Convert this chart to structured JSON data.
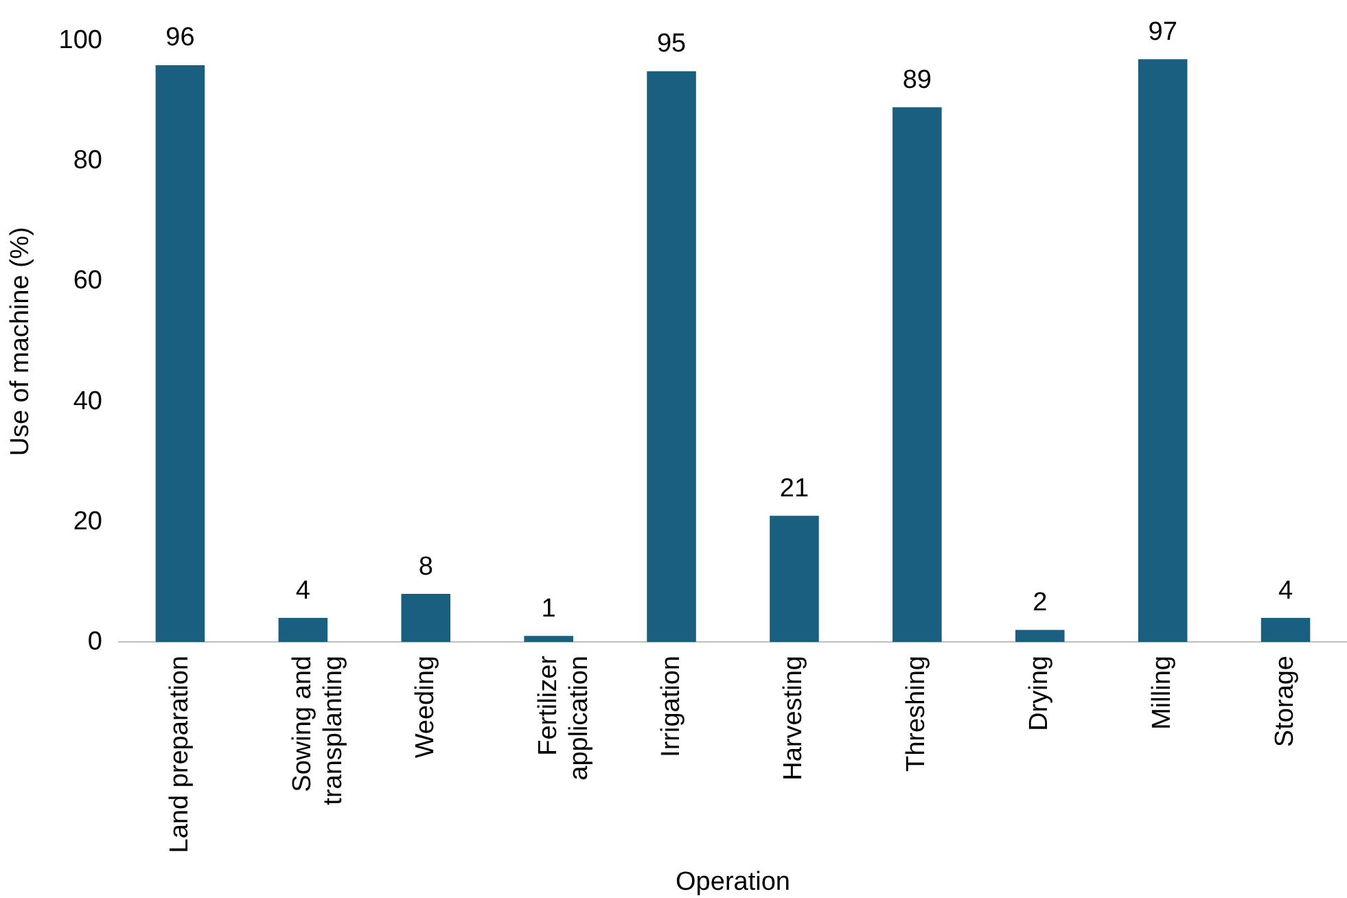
{
  "chart_data": {
    "type": "bar",
    "xlabel": "Operation",
    "ylabel": "Use of machine (%)",
    "categories": [
      "Land preparation",
      "Sowing and transplanting",
      "Weeding",
      "Fertilizer application",
      "Irrigation",
      "Harvesting",
      "Threshing",
      "Drying",
      "Milling",
      "Storage"
    ],
    "values": [
      96,
      4,
      8,
      1,
      95,
      21,
      89,
      2,
      97,
      4
    ],
    "color": "#1a5e80",
    "ylim": [
      0,
      100
    ],
    "yticks": [
      0,
      20,
      40,
      60,
      80,
      100
    ],
    "grid": false,
    "legend": false,
    "data_labels": true
  }
}
